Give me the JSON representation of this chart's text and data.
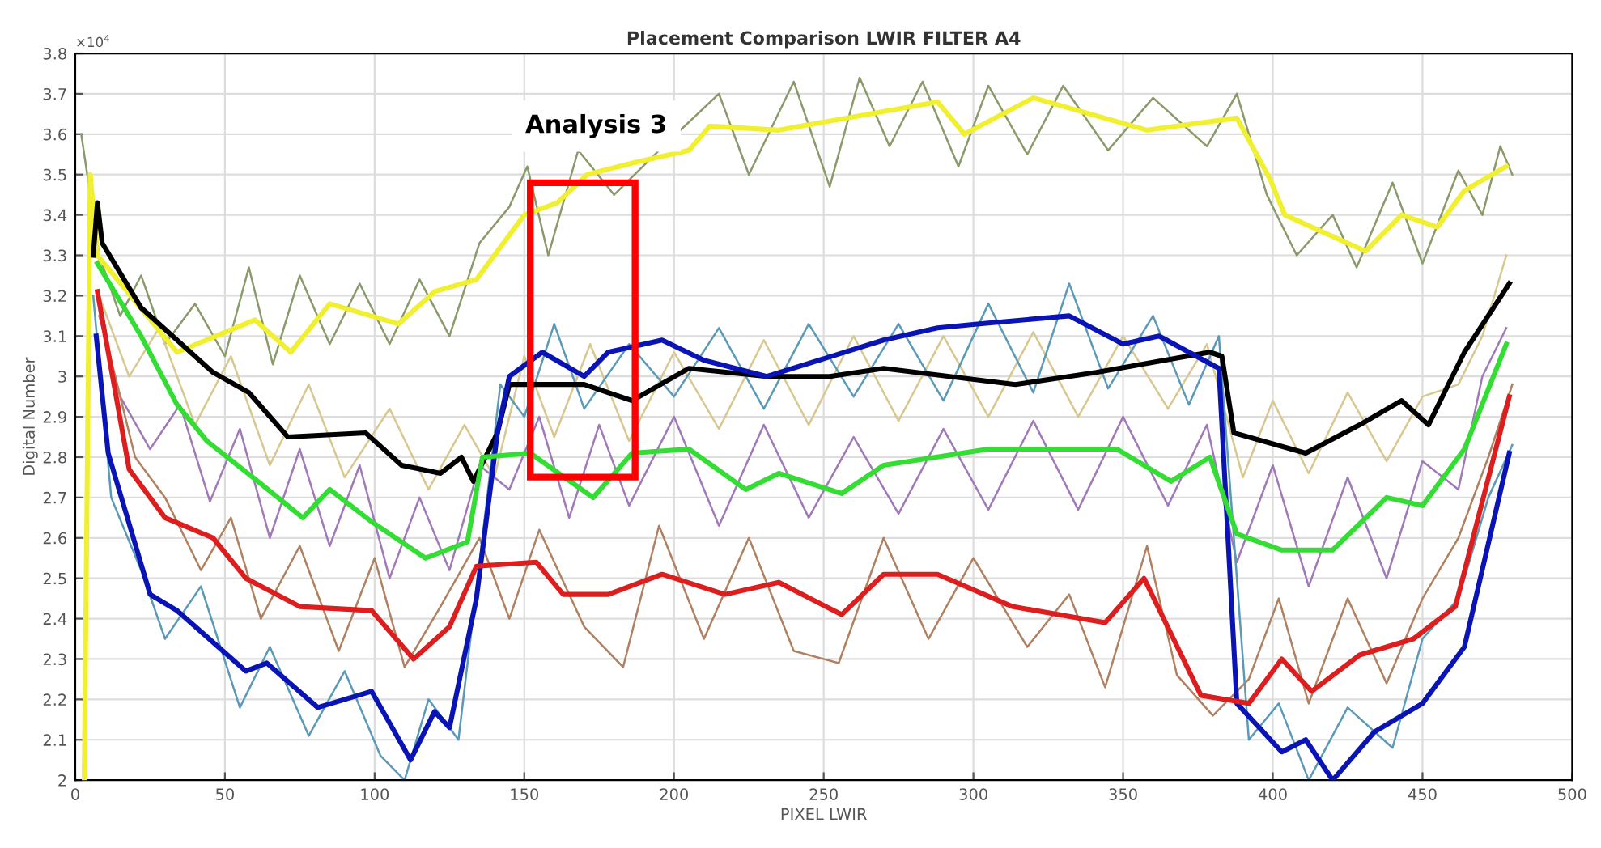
{
  "chart_data": {
    "type": "line",
    "title": "Placement Comparison LWIR FILTER A4",
    "xlabel": "PIXEL LWIR",
    "ylabel": "Digital Number",
    "xlim": [
      0,
      500
    ],
    "xticks": [
      0,
      50,
      100,
      150,
      200,
      250,
      300,
      350,
      400,
      450,
      500
    ],
    "ylim": [
      2,
      3.8
    ],
    "yticks": [
      2,
      2.1,
      2.2,
      2.3,
      2.4,
      2.5,
      2.6,
      2.7,
      2.8,
      2.9,
      3,
      3.1,
      3.2,
      3.3,
      3.4,
      3.5,
      3.6,
      3.7,
      3.8
    ],
    "grid": true,
    "legend": false,
    "marker": "none",
    "line_style": "solid",
    "annotations": [
      "×10$^{4}$",
      "Analysis 3"
    ],
    "series": [
      {
        "color": "#8a9a6a",
        "x": [
          2,
          8,
          15,
          22,
          30,
          40,
          50,
          58,
          66,
          75,
          85,
          95,
          105,
          115,
          125,
          135,
          145,
          151,
          158,
          168,
          180,
          195,
          215,
          225,
          240,
          252,
          262,
          272,
          283,
          295,
          305,
          318,
          330,
          345,
          360,
          378,
          388,
          398,
          408,
          420,
          428,
          440,
          450,
          462,
          470,
          476,
          480
        ],
        "values": [
          3.6,
          3.3,
          3.15,
          3.25,
          3.08,
          3.18,
          3.05,
          3.27,
          3.03,
          3.25,
          3.08,
          3.23,
          3.08,
          3.24,
          3.1,
          3.33,
          3.42,
          3.52,
          3.3,
          3.56,
          3.45,
          3.56,
          3.7,
          3.5,
          3.73,
          3.47,
          3.74,
          3.57,
          3.73,
          3.52,
          3.72,
          3.55,
          3.72,
          3.56,
          3.69,
          3.57,
          3.7,
          3.45,
          3.3,
          3.4,
          3.27,
          3.48,
          3.28,
          3.51,
          3.4,
          3.57,
          3.5
        ]
      },
      {
        "color": "#d8c890",
        "x": [
          8,
          18,
          28,
          40,
          52,
          65,
          78,
          90,
          105,
          118,
          130,
          140,
          150,
          160,
          172,
          185,
          200,
          215,
          230,
          245,
          260,
          275,
          290,
          305,
          320,
          335,
          350,
          365,
          378,
          390,
          400,
          412,
          425,
          438,
          450,
          462,
          470,
          478
        ],
        "values": [
          3.2,
          3.0,
          3.12,
          2.88,
          3.05,
          2.78,
          2.98,
          2.75,
          2.92,
          2.72,
          2.88,
          2.75,
          3.05,
          2.85,
          3.08,
          2.84,
          3.06,
          2.87,
          3.09,
          2.88,
          3.1,
          2.89,
          3.1,
          2.9,
          3.11,
          2.9,
          3.1,
          2.92,
          3.08,
          2.75,
          2.94,
          2.76,
          2.96,
          2.79,
          2.95,
          2.98,
          3.1,
          3.3
        ]
      },
      {
        "color": "#a07ab8",
        "x": [
          8,
          15,
          25,
          35,
          45,
          55,
          65,
          75,
          85,
          95,
          105,
          115,
          125,
          135,
          145,
          155,
          165,
          175,
          185,
          200,
          215,
          230,
          245,
          260,
          275,
          290,
          305,
          320,
          335,
          350,
          365,
          378,
          388,
          400,
          412,
          425,
          438,
          450,
          462,
          470,
          478
        ],
        "values": [
          3.15,
          2.95,
          2.82,
          2.93,
          2.69,
          2.87,
          2.6,
          2.82,
          2.58,
          2.78,
          2.5,
          2.7,
          2.52,
          2.78,
          2.72,
          2.9,
          2.65,
          2.88,
          2.68,
          2.9,
          2.63,
          2.88,
          2.65,
          2.85,
          2.66,
          2.87,
          2.67,
          2.89,
          2.67,
          2.9,
          2.68,
          2.88,
          2.54,
          2.78,
          2.48,
          2.75,
          2.5,
          2.79,
          2.72,
          3.0,
          3.12
        ]
      },
      {
        "color": "#b08060",
        "x": [
          10,
          20,
          30,
          42,
          52,
          62,
          75,
          88,
          100,
          110,
          122,
          135,
          145,
          155,
          170,
          183,
          195,
          210,
          225,
          240,
          255,
          270,
          285,
          300,
          318,
          332,
          344,
          358,
          368,
          380,
          392,
          402,
          412,
          425,
          438,
          450,
          462,
          472,
          480
        ],
        "values": [
          3.1,
          2.8,
          2.7,
          2.52,
          2.65,
          2.4,
          2.58,
          2.32,
          2.55,
          2.28,
          2.43,
          2.6,
          2.4,
          2.62,
          2.38,
          2.28,
          2.63,
          2.35,
          2.6,
          2.32,
          2.29,
          2.6,
          2.35,
          2.55,
          2.33,
          2.46,
          2.23,
          2.58,
          2.26,
          2.16,
          2.25,
          2.45,
          2.19,
          2.45,
          2.24,
          2.45,
          2.6,
          2.8,
          2.98
        ]
      },
      {
        "color": "#5a9ab8",
        "x": [
          6,
          12,
          22,
          30,
          42,
          55,
          65,
          78,
          90,
          102,
          110,
          118,
          128,
          136,
          142,
          150,
          160,
          170,
          185,
          200,
          215,
          230,
          245,
          260,
          275,
          290,
          305,
          320,
          332,
          345,
          360,
          372,
          382,
          392,
          402,
          412,
          425,
          440,
          450,
          462,
          472,
          480
        ],
        "values": [
          3.2,
          2.7,
          2.52,
          2.35,
          2.48,
          2.18,
          2.33,
          2.11,
          2.27,
          2.06,
          2.0,
          2.2,
          2.1,
          2.6,
          2.98,
          2.9,
          3.13,
          2.92,
          3.08,
          2.95,
          3.12,
          2.92,
          3.13,
          2.95,
          3.13,
          2.94,
          3.18,
          2.96,
          3.23,
          2.97,
          3.15,
          2.93,
          3.1,
          2.1,
          2.19,
          2.0,
          2.18,
          2.08,
          2.35,
          2.45,
          2.7,
          2.83
        ]
      },
      {
        "color": "#f0f030",
        "x": [
          3,
          5,
          7.4,
          34,
          60,
          72,
          85,
          108,
          120,
          134,
          150,
          161,
          171,
          187,
          205,
          212,
          235,
          288,
          297,
          320,
          358,
          388,
          399,
          404,
          431,
          443,
          455,
          464,
          478
        ],
        "values": [
          2.0,
          3.5,
          3.3,
          3.06,
          3.14,
          3.06,
          3.18,
          3.13,
          3.21,
          3.24,
          3.4,
          3.43,
          3.5,
          3.53,
          3.56,
          3.62,
          3.61,
          3.68,
          3.6,
          3.69,
          3.61,
          3.64,
          3.49,
          3.4,
          3.31,
          3.4,
          3.37,
          3.46,
          3.52
        ]
      },
      {
        "color": "#000000",
        "x": [
          6,
          7.4,
          9,
          22,
          34,
          46,
          58,
          71,
          97,
          109,
          122,
          129,
          133,
          141,
          145,
          170,
          186,
          205,
          231,
          252,
          270,
          314,
          341,
          379,
          383,
          387,
          411,
          429,
          443,
          452,
          464,
          479
        ],
        "values": [
          3.3,
          3.43,
          3.33,
          3.17,
          3.09,
          3.01,
          2.96,
          2.85,
          2.86,
          2.78,
          2.76,
          2.8,
          2.74,
          2.86,
          2.98,
          2.98,
          2.94,
          3.02,
          3.0,
          3.0,
          3.02,
          2.98,
          3.01,
          3.06,
          3.05,
          2.86,
          2.81,
          2.88,
          2.94,
          2.88,
          3.06,
          3.23
        ]
      },
      {
        "color": "#0a14b4",
        "x": [
          7,
          11,
          25,
          34,
          57,
          64,
          81,
          99,
          112,
          120,
          125,
          134,
          141,
          145,
          156,
          170,
          178,
          196,
          210,
          231,
          270,
          288,
          302,
          332,
          350,
          362,
          382,
          388,
          403,
          411,
          420,
          434,
          450,
          464,
          479
        ],
        "values": [
          3.1,
          2.81,
          2.46,
          2.42,
          2.27,
          2.29,
          2.18,
          2.22,
          2.05,
          2.17,
          2.13,
          2.45,
          2.86,
          3.0,
          3.06,
          3.0,
          3.06,
          3.09,
          3.04,
          3.0,
          3.09,
          3.12,
          3.13,
          3.15,
          3.08,
          3.1,
          3.02,
          2.19,
          2.07,
          2.1,
          2.0,
          2.12,
          2.19,
          2.33,
          2.81
        ]
      },
      {
        "color": "#33dd33",
        "x": [
          7.4,
          22,
          34,
          44,
          61,
          76,
          85,
          99,
          117,
          131,
          136,
          152,
          173,
          186,
          205,
          224,
          235,
          256,
          270,
          305,
          348,
          366,
          379,
          388,
          403,
          420,
          438,
          450,
          464,
          478
        ],
        "values": [
          3.28,
          3.1,
          2.93,
          2.84,
          2.74,
          2.65,
          2.72,
          2.64,
          2.55,
          2.59,
          2.8,
          2.81,
          2.7,
          2.81,
          2.82,
          2.72,
          2.76,
          2.71,
          2.78,
          2.82,
          2.82,
          2.74,
          2.8,
          2.61,
          2.57,
          2.57,
          2.7,
          2.68,
          2.82,
          3.08
        ]
      },
      {
        "color": "#dd1e1e",
        "x": [
          7.4,
          18,
          30,
          46,
          57,
          75,
          99,
          113,
          125,
          134,
          154,
          163,
          178,
          196,
          217,
          235,
          256,
          270,
          288,
          313,
          344,
          357,
          376,
          392,
          403,
          413,
          429,
          447,
          461,
          479
        ],
        "values": [
          3.21,
          2.77,
          2.65,
          2.6,
          2.5,
          2.43,
          2.42,
          2.3,
          2.38,
          2.53,
          2.54,
          2.46,
          2.46,
          2.51,
          2.46,
          2.49,
          2.41,
          2.51,
          2.51,
          2.43,
          2.39,
          2.5,
          2.21,
          2.19,
          2.3,
          2.22,
          2.31,
          2.35,
          2.43,
          2.95
        ]
      }
    ]
  }
}
